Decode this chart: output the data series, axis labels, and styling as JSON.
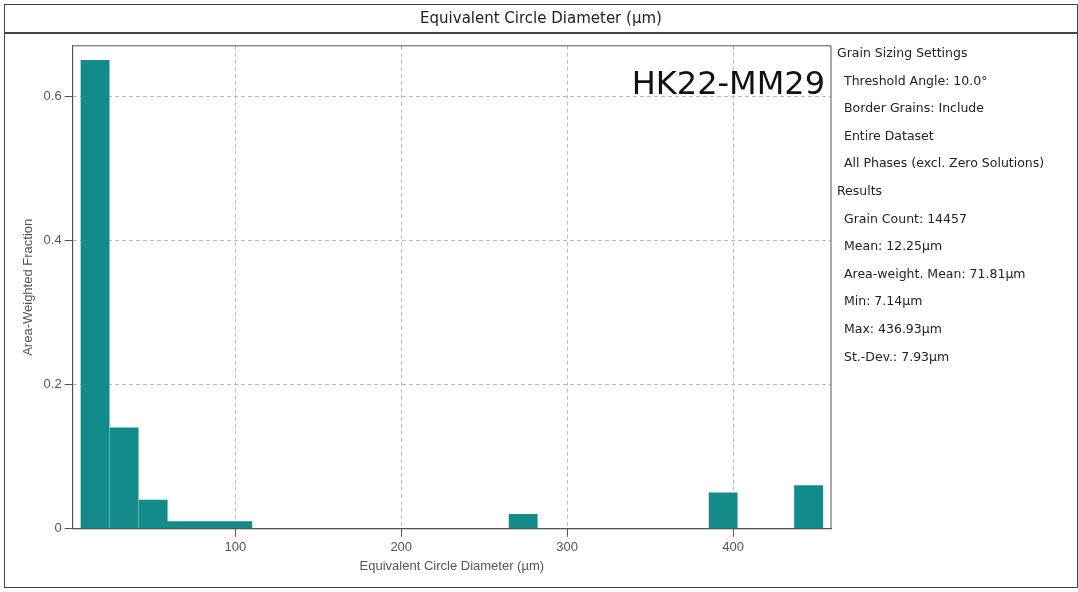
{
  "chart_data": {
    "type": "histogram",
    "title": "Equivalent Circle Diameter (µm)",
    "xlabel": "Equivalent Circle Diameter (µm)",
    "ylabel": "Area-Weighted Fraction",
    "bins": [
      7,
      24,
      42,
      59,
      76,
      93,
      110,
      127,
      145,
      162,
      179,
      196,
      213,
      231,
      248,
      265,
      282,
      299,
      317,
      334,
      351,
      368,
      385,
      403,
      420,
      437,
      454
    ],
    "values": [
      0.65,
      0.14,
      0.04,
      0.01,
      0.01,
      0.01,
      0,
      0,
      0,
      0,
      0,
      0,
      0,
      0,
      0,
      0.02,
      0,
      0,
      0,
      0,
      0,
      0,
      0.05,
      0,
      0,
      0.06
    ],
    "color": "#138b8b",
    "xlim": [
      2,
      459
    ],
    "xticks": [
      100,
      200,
      300,
      400
    ],
    "ylim": [
      0,
      0.67
    ],
    "yticks": [
      0,
      0.2,
      0.4,
      0.6
    ],
    "grid": true,
    "legend": false,
    "annotations": [
      "HK22-MM29",
      "Grain Sizing Settings",
      "Threshold Angle: 10.0°",
      "Border Grains: Include",
      "Entire Dataset",
      "All Phases (excl. Zero Solutions)",
      "Results",
      "Grain Count: 14457",
      "Mean: 12.25µm",
      "Area-weight. Mean: 71.81µm",
      "Min: 7.14µm",
      "Max: 436.93µm",
      "St.-Dev.: 7.93µm"
    ]
  }
}
